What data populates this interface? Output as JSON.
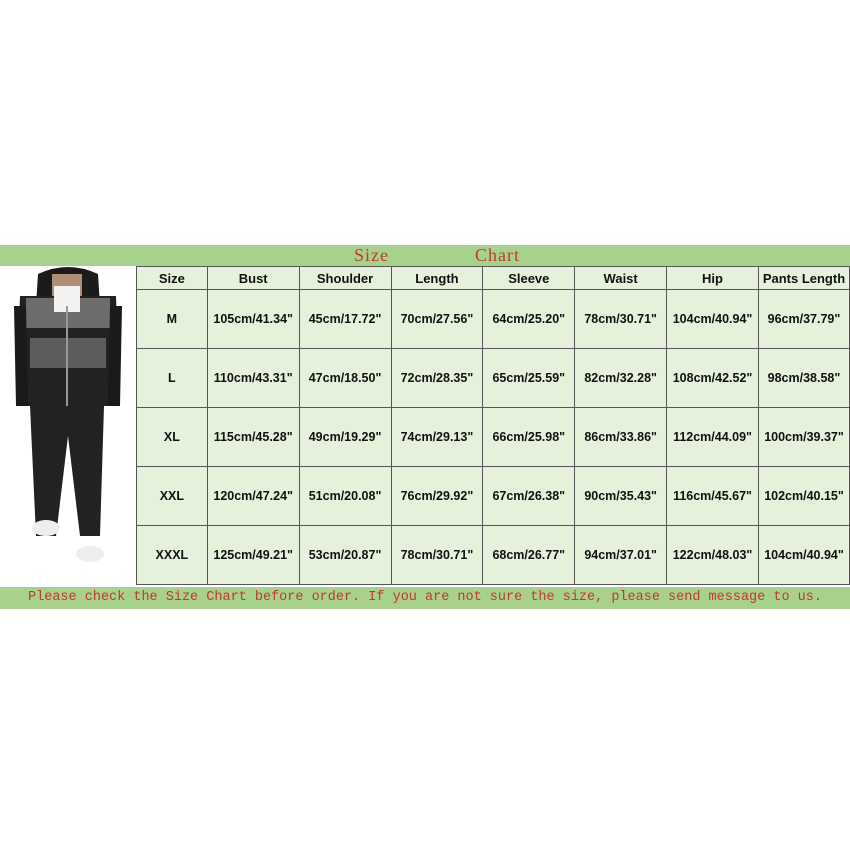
{
  "title": {
    "word1": "Size",
    "word2": "Chart"
  },
  "columns": [
    "Size",
    "Bust",
    "Shoulder",
    "Length",
    "Sleeve",
    "Waist",
    "Hip",
    "Pants Length"
  ],
  "rows": [
    [
      "M",
      "105cm/41.34\"",
      "45cm/17.72\"",
      "70cm/27.56\"",
      "64cm/25.20\"",
      "78cm/30.71\"",
      "104cm/40.94\"",
      "96cm/37.79\""
    ],
    [
      "L",
      "110cm/43.31\"",
      "47cm/18.50\"",
      "72cm/28.35\"",
      "65cm/25.59\"",
      "82cm/32.28\"",
      "108cm/42.52\"",
      "98cm/38.58\""
    ],
    [
      "XL",
      "115cm/45.28\"",
      "49cm/19.29\"",
      "74cm/29.13\"",
      "66cm/25.98\"",
      "86cm/33.86\"",
      "112cm/44.09\"",
      "100cm/39.37\""
    ],
    [
      "XXL",
      "120cm/47.24\"",
      "51cm/20.08\"",
      "76cm/29.92\"",
      "67cm/26.38\"",
      "90cm/35.43\"",
      "116cm/45.67\"",
      "102cm/40.15\""
    ],
    [
      "XXXL",
      "125cm/49.21\"",
      "53cm/20.87\"",
      "78cm/30.71\"",
      "68cm/26.77\"",
      "94cm/37.01\"",
      "122cm/48.03\"",
      "104cm/40.94\""
    ]
  ],
  "footer": "Please check the Size Chart before order. If you are not sure the size, please send message to us.",
  "colors": {
    "band": "#a9d18e",
    "cell": "#e6f1db",
    "title_text": "#c0392b"
  }
}
